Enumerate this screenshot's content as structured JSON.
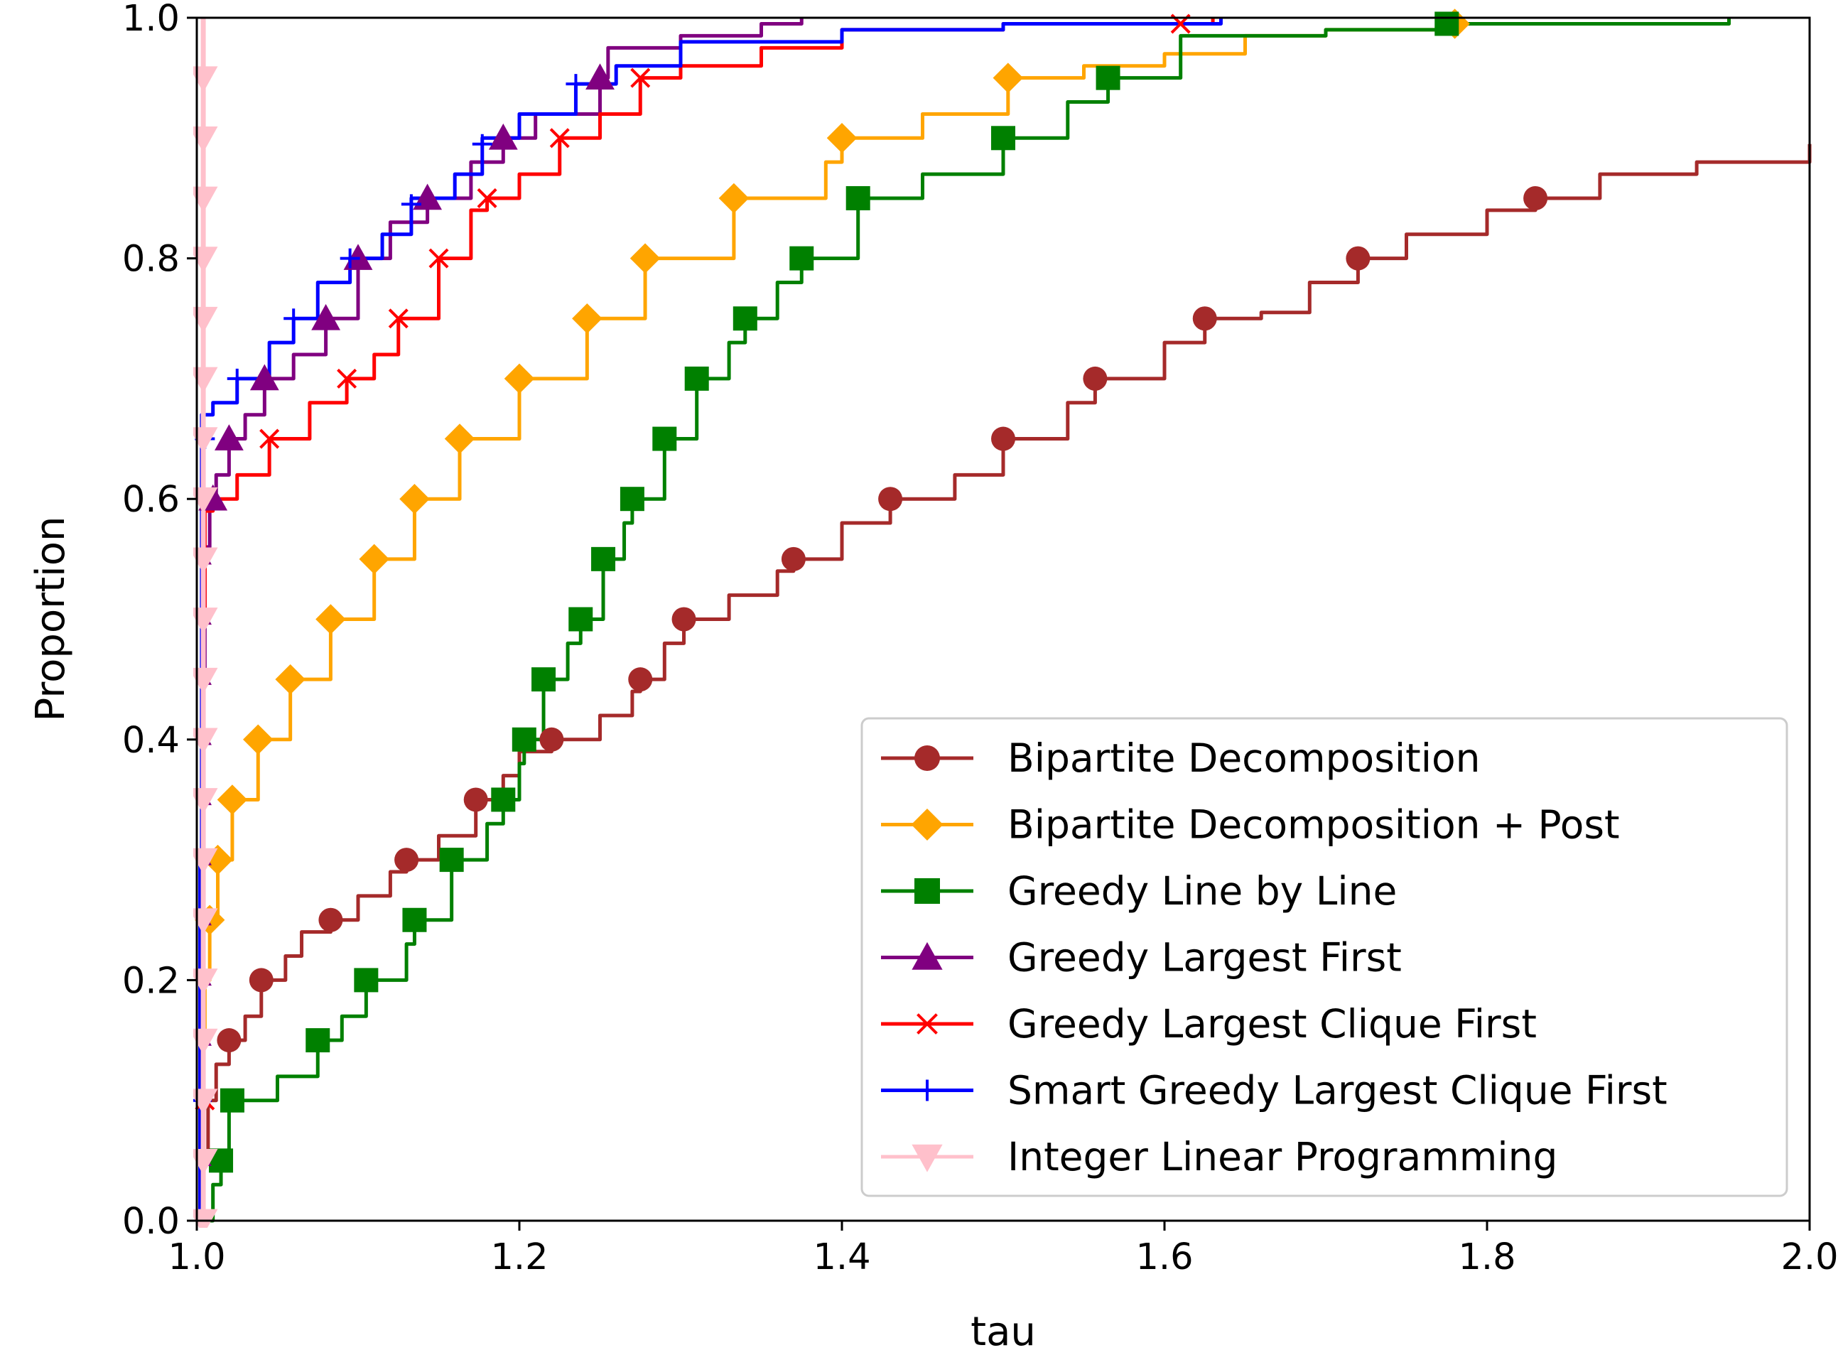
{
  "chart_data": {
    "type": "line",
    "title": "",
    "xlabel": "tau",
    "ylabel": "Proportion",
    "xlim": [
      1.0,
      2.0
    ],
    "ylim": [
      0.0,
      1.0
    ],
    "x_ticks": [
      "1.0",
      "1.2",
      "1.4",
      "1.6",
      "1.8",
      "2.0"
    ],
    "y_ticks": [
      "0.0",
      "0.2",
      "0.4",
      "0.6",
      "0.8",
      "1.0"
    ],
    "grid": false,
    "legend_position": "lower-right",
    "series": [
      {
        "name": "Bipartite Decomposition",
        "color": "#a52a2a",
        "marker": "circle",
        "points": [
          [
            1.0,
            0.0
          ],
          [
            1.003,
            0.05
          ],
          [
            1.007,
            0.1
          ],
          [
            1.012,
            0.13
          ],
          [
            1.02,
            0.15
          ],
          [
            1.03,
            0.17
          ],
          [
            1.04,
            0.2
          ],
          [
            1.055,
            0.22
          ],
          [
            1.065,
            0.24
          ],
          [
            1.083,
            0.25
          ],
          [
            1.1,
            0.27
          ],
          [
            1.12,
            0.29
          ],
          [
            1.13,
            0.3
          ],
          [
            1.15,
            0.32
          ],
          [
            1.173,
            0.35
          ],
          [
            1.19,
            0.37
          ],
          [
            1.2,
            0.39
          ],
          [
            1.22,
            0.4
          ],
          [
            1.25,
            0.42
          ],
          [
            1.27,
            0.44
          ],
          [
            1.275,
            0.45
          ],
          [
            1.29,
            0.48
          ],
          [
            1.302,
            0.5
          ],
          [
            1.33,
            0.52
          ],
          [
            1.36,
            0.54
          ],
          [
            1.37,
            0.55
          ],
          [
            1.4,
            0.58
          ],
          [
            1.43,
            0.6
          ],
          [
            1.47,
            0.62
          ],
          [
            1.5,
            0.65
          ],
          [
            1.54,
            0.68
          ],
          [
            1.557,
            0.7
          ],
          [
            1.6,
            0.73
          ],
          [
            1.625,
            0.75
          ],
          [
            1.66,
            0.755
          ],
          [
            1.69,
            0.78
          ],
          [
            1.72,
            0.8
          ],
          [
            1.75,
            0.82
          ],
          [
            1.8,
            0.84
          ],
          [
            1.83,
            0.85
          ],
          [
            1.87,
            0.87
          ],
          [
            1.93,
            0.88
          ],
          [
            2.0,
            0.895
          ]
        ],
        "markers": [
          [
            1.02,
            0.15
          ],
          [
            1.04,
            0.2
          ],
          [
            1.083,
            0.25
          ],
          [
            1.13,
            0.3
          ],
          [
            1.173,
            0.35
          ],
          [
            1.22,
            0.4
          ],
          [
            1.275,
            0.45
          ],
          [
            1.302,
            0.5
          ],
          [
            1.37,
            0.55
          ],
          [
            1.43,
            0.6
          ],
          [
            1.5,
            0.65
          ],
          [
            1.557,
            0.7
          ],
          [
            1.625,
            0.75
          ],
          [
            1.72,
            0.8
          ],
          [
            1.83,
            0.85
          ]
        ]
      },
      {
        "name": "Bipartite Decomposition + Post",
        "color": "#ffa500",
        "marker": "diamond",
        "points": [
          [
            1.0,
            0.0
          ],
          [
            1.003,
            0.15
          ],
          [
            1.005,
            0.2
          ],
          [
            1.008,
            0.25
          ],
          [
            1.013,
            0.3
          ],
          [
            1.022,
            0.35
          ],
          [
            1.038,
            0.4
          ],
          [
            1.058,
            0.45
          ],
          [
            1.083,
            0.5
          ],
          [
            1.11,
            0.55
          ],
          [
            1.135,
            0.6
          ],
          [
            1.163,
            0.65
          ],
          [
            1.2,
            0.7
          ],
          [
            1.242,
            0.75
          ],
          [
            1.278,
            0.8
          ],
          [
            1.333,
            0.85
          ],
          [
            1.39,
            0.88
          ],
          [
            1.4,
            0.9
          ],
          [
            1.45,
            0.92
          ],
          [
            1.503,
            0.95
          ],
          [
            1.55,
            0.96
          ],
          [
            1.6,
            0.97
          ],
          [
            1.65,
            0.985
          ],
          [
            1.7,
            0.99
          ],
          [
            1.78,
            0.995
          ],
          [
            1.95,
            1.0
          ]
        ],
        "markers": [
          [
            1.008,
            0.25
          ],
          [
            1.013,
            0.3
          ],
          [
            1.022,
            0.35
          ],
          [
            1.038,
            0.4
          ],
          [
            1.058,
            0.45
          ],
          [
            1.083,
            0.5
          ],
          [
            1.11,
            0.55
          ],
          [
            1.135,
            0.6
          ],
          [
            1.163,
            0.65
          ],
          [
            1.2,
            0.7
          ],
          [
            1.242,
            0.75
          ],
          [
            1.278,
            0.8
          ],
          [
            1.333,
            0.85
          ],
          [
            1.4,
            0.9
          ],
          [
            1.503,
            0.95
          ],
          [
            1.78,
            0.995
          ]
        ]
      },
      {
        "name": "Greedy Line by Line",
        "color": "#008000",
        "marker": "square",
        "points": [
          [
            1.0,
            0.0
          ],
          [
            1.01,
            0.03
          ],
          [
            1.015,
            0.05
          ],
          [
            1.02,
            0.1
          ],
          [
            1.05,
            0.12
          ],
          [
            1.075,
            0.15
          ],
          [
            1.09,
            0.17
          ],
          [
            1.105,
            0.2
          ],
          [
            1.13,
            0.23
          ],
          [
            1.135,
            0.25
          ],
          [
            1.158,
            0.3
          ],
          [
            1.18,
            0.33
          ],
          [
            1.19,
            0.35
          ],
          [
            1.2,
            0.38
          ],
          [
            1.203,
            0.4
          ],
          [
            1.215,
            0.45
          ],
          [
            1.23,
            0.48
          ],
          [
            1.238,
            0.5
          ],
          [
            1.252,
            0.55
          ],
          [
            1.265,
            0.58
          ],
          [
            1.27,
            0.6
          ],
          [
            1.29,
            0.65
          ],
          [
            1.31,
            0.7
          ],
          [
            1.33,
            0.73
          ],
          [
            1.34,
            0.75
          ],
          [
            1.36,
            0.78
          ],
          [
            1.375,
            0.8
          ],
          [
            1.41,
            0.85
          ],
          [
            1.45,
            0.87
          ],
          [
            1.5,
            0.9
          ],
          [
            1.54,
            0.93
          ],
          [
            1.565,
            0.95
          ],
          [
            1.61,
            0.985
          ],
          [
            1.7,
            0.99
          ],
          [
            1.775,
            0.995
          ],
          [
            1.95,
            1.0
          ]
        ],
        "markers": [
          [
            1.015,
            0.05
          ],
          [
            1.022,
            0.1
          ],
          [
            1.075,
            0.15
          ],
          [
            1.105,
            0.2
          ],
          [
            1.135,
            0.25
          ],
          [
            1.158,
            0.3
          ],
          [
            1.19,
            0.35
          ],
          [
            1.203,
            0.4
          ],
          [
            1.215,
            0.45
          ],
          [
            1.238,
            0.5
          ],
          [
            1.252,
            0.55
          ],
          [
            1.27,
            0.6
          ],
          [
            1.29,
            0.65
          ],
          [
            1.31,
            0.7
          ],
          [
            1.34,
            0.75
          ],
          [
            1.375,
            0.8
          ],
          [
            1.41,
            0.85
          ],
          [
            1.5,
            0.9
          ],
          [
            1.565,
            0.95
          ],
          [
            1.775,
            0.995
          ]
        ]
      },
      {
        "name": "Greedy Largest First",
        "color": "#800080",
        "marker": "triangle-up",
        "points": [
          [
            1.0,
            0.0
          ],
          [
            1.002,
            0.2
          ],
          [
            1.004,
            0.45
          ],
          [
            1.005,
            0.56
          ],
          [
            1.008,
            0.6
          ],
          [
            1.012,
            0.62
          ],
          [
            1.02,
            0.65
          ],
          [
            1.03,
            0.67
          ],
          [
            1.042,
            0.7
          ],
          [
            1.06,
            0.72
          ],
          [
            1.08,
            0.75
          ],
          [
            1.1,
            0.8
          ],
          [
            1.12,
            0.83
          ],
          [
            1.143,
            0.85
          ],
          [
            1.17,
            0.88
          ],
          [
            1.19,
            0.9
          ],
          [
            1.21,
            0.92
          ],
          [
            1.25,
            0.95
          ],
          [
            1.255,
            0.975
          ],
          [
            1.3,
            0.985
          ],
          [
            1.35,
            0.995
          ],
          [
            1.375,
            1.0
          ]
        ],
        "markers": [
          [
            1.005,
            0.05
          ],
          [
            1.005,
            0.1
          ],
          [
            1.005,
            0.15
          ],
          [
            1.005,
            0.2
          ],
          [
            1.005,
            0.25
          ],
          [
            1.005,
            0.3
          ],
          [
            1.005,
            0.35
          ],
          [
            1.005,
            0.4
          ],
          [
            1.005,
            0.45
          ],
          [
            1.005,
            0.5
          ],
          [
            1.005,
            0.55
          ],
          [
            1.01,
            0.6
          ],
          [
            1.02,
            0.65
          ],
          [
            1.042,
            0.7
          ],
          [
            1.08,
            0.75
          ],
          [
            1.1,
            0.8
          ],
          [
            1.143,
            0.85
          ],
          [
            1.19,
            0.9
          ],
          [
            1.25,
            0.95
          ]
        ]
      },
      {
        "name": "Greedy Largest Clique First",
        "color": "#ff0000",
        "marker": "x",
        "points": [
          [
            1.0,
            0.0
          ],
          [
            1.002,
            0.2
          ],
          [
            1.004,
            0.5
          ],
          [
            1.005,
            0.59
          ],
          [
            1.01,
            0.6
          ],
          [
            1.025,
            0.62
          ],
          [
            1.045,
            0.65
          ],
          [
            1.07,
            0.68
          ],
          [
            1.093,
            0.7
          ],
          [
            1.11,
            0.72
          ],
          [
            1.125,
            0.75
          ],
          [
            1.15,
            0.8
          ],
          [
            1.17,
            0.84
          ],
          [
            1.18,
            0.85
          ],
          [
            1.2,
            0.87
          ],
          [
            1.225,
            0.9
          ],
          [
            1.25,
            0.92
          ],
          [
            1.275,
            0.95
          ],
          [
            1.3,
            0.96
          ],
          [
            1.35,
            0.975
          ],
          [
            1.4,
            0.99
          ],
          [
            1.5,
            0.995
          ],
          [
            1.61,
            0.995
          ],
          [
            1.63,
            1.0
          ]
        ],
        "markers": [
          [
            1.005,
            0.1
          ],
          [
            1.045,
            0.65
          ],
          [
            1.093,
            0.7
          ],
          [
            1.125,
            0.75
          ],
          [
            1.15,
            0.8
          ],
          [
            1.18,
            0.85
          ],
          [
            1.225,
            0.9
          ],
          [
            1.275,
            0.95
          ],
          [
            1.61,
            0.995
          ]
        ]
      },
      {
        "name": "Smart Greedy Largest Clique First",
        "color": "#0000ff",
        "marker": "plus",
        "points": [
          [
            1.0,
            0.0
          ],
          [
            1.002,
            0.3
          ],
          [
            1.003,
            0.67
          ],
          [
            1.01,
            0.68
          ],
          [
            1.025,
            0.7
          ],
          [
            1.045,
            0.73
          ],
          [
            1.06,
            0.75
          ],
          [
            1.075,
            0.78
          ],
          [
            1.095,
            0.8
          ],
          [
            1.115,
            0.82
          ],
          [
            1.133,
            0.85
          ],
          [
            1.16,
            0.87
          ],
          [
            1.177,
            0.9
          ],
          [
            1.2,
            0.92
          ],
          [
            1.235,
            0.945
          ],
          [
            1.26,
            0.96
          ],
          [
            1.3,
            0.98
          ],
          [
            1.4,
            0.99
          ],
          [
            1.5,
            0.995
          ],
          [
            1.635,
            1.0
          ]
        ],
        "markers": [
          [
            1.003,
            0.1
          ],
          [
            1.005,
            0.65
          ],
          [
            1.025,
            0.7
          ],
          [
            1.06,
            0.75
          ],
          [
            1.095,
            0.8
          ],
          [
            1.133,
            0.845
          ],
          [
            1.177,
            0.895
          ],
          [
            1.235,
            0.945
          ]
        ]
      },
      {
        "name": "Integer Linear Programming",
        "color": "#ffc0cb",
        "marker": "triangle-down",
        "points": [
          [
            1.004,
            0.0
          ],
          [
            1.004,
            1.0
          ]
        ],
        "markers": [
          [
            1.004,
            0.0
          ],
          [
            1.004,
            0.05
          ],
          [
            1.004,
            0.1
          ],
          [
            1.004,
            0.15
          ],
          [
            1.004,
            0.2
          ],
          [
            1.004,
            0.25
          ],
          [
            1.004,
            0.3
          ],
          [
            1.004,
            0.35
          ],
          [
            1.004,
            0.4
          ],
          [
            1.004,
            0.45
          ],
          [
            1.004,
            0.5
          ],
          [
            1.004,
            0.55
          ],
          [
            1.004,
            0.6
          ],
          [
            1.004,
            0.65
          ],
          [
            1.004,
            0.7
          ],
          [
            1.004,
            0.75
          ],
          [
            1.004,
            0.8
          ],
          [
            1.004,
            0.85
          ],
          [
            1.004,
            0.9
          ],
          [
            1.004,
            0.95
          ]
        ]
      }
    ]
  }
}
